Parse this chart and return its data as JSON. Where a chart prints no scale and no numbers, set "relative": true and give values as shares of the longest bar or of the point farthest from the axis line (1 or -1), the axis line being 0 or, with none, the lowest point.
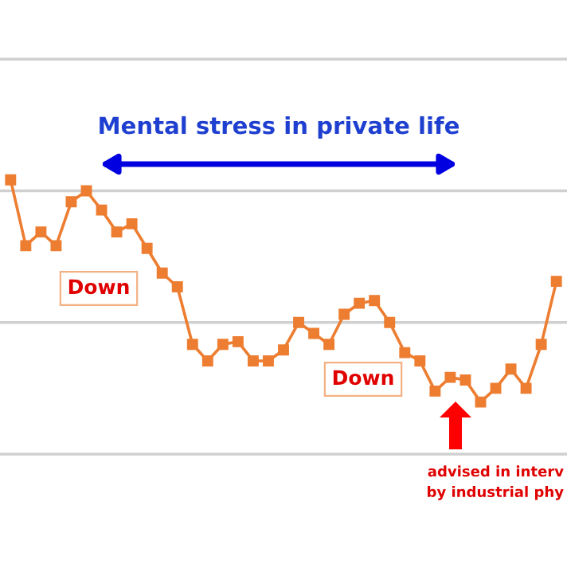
{
  "chart_data": {
    "type": "line",
    "relative": true,
    "title": "Mental stress in private life",
    "categories": [
      null,
      null,
      null,
      null,
      null,
      null,
      null,
      null,
      null,
      null,
      null,
      null,
      null,
      null,
      null,
      null,
      null,
      null,
      null,
      null,
      null,
      null,
      null,
      null,
      null,
      null,
      null,
      null,
      null,
      null,
      null,
      null,
      null,
      null,
      null,
      null,
      null
    ],
    "series": [
      {
        "color": "#ed7d31",
        "values": [
          1.0,
          0.76,
          0.81,
          0.76,
          0.92,
          0.96,
          0.89,
          0.81,
          0.84,
          0.75,
          0.66,
          0.61,
          0.4,
          0.34,
          0.4,
          0.41,
          0.34,
          0.34,
          0.38,
          0.48,
          0.44,
          0.4,
          0.51,
          0.55,
          0.56,
          0.48,
          0.37,
          0.34,
          0.23,
          0.28,
          0.27,
          0.19,
          0.24,
          0.31,
          0.24,
          0.4,
          0.63
        ]
      }
    ],
    "annotations": [
      "Down",
      "Down",
      "advised in interv\nby industrial phy"
    ],
    "ref_lines": [
      {
        "axis": "y",
        "value": 1.44,
        "color": "#d0d0d0"
      },
      {
        "axis": "y",
        "value": 0.96,
        "color": "#d0d0d0"
      },
      {
        "axis": "y",
        "value": 0.48,
        "color": "#d0d0d0"
      }
    ],
    "marker": "square",
    "line_style": "solid"
  }
}
